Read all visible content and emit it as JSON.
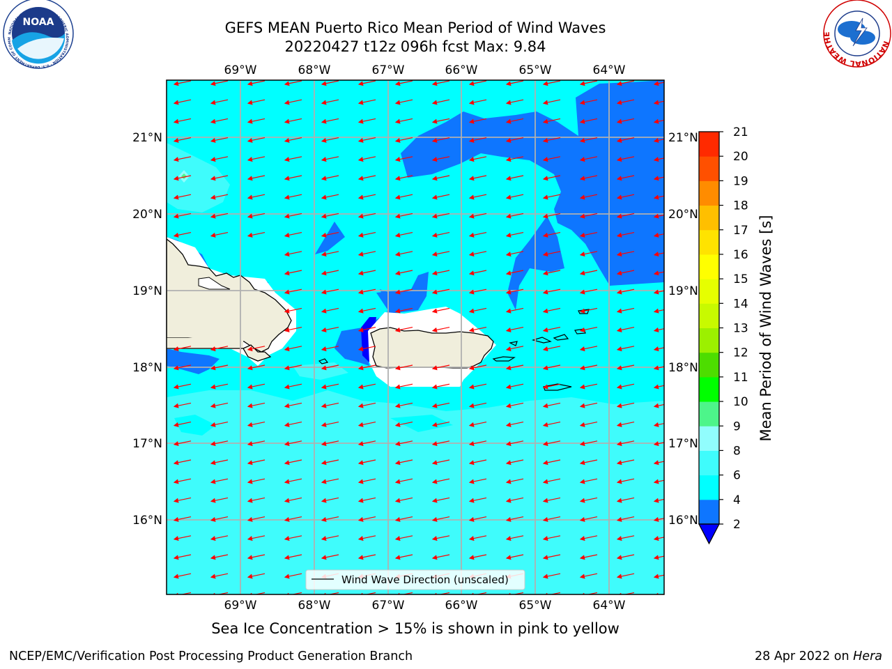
{
  "header": {
    "title_line1": "GEFS MEAN Puerto Rico Mean Period of Wind Waves",
    "title_line2": "20220427 t12z 096h fcst   Max: 9.84"
  },
  "logos": {
    "noaa_text": "NOAA",
    "noaa_ring_text": "NATIONAL OCEANIC AND ATMOSPHERIC ADMINISTRATION · U.S. DEPARTMENT OF COMMERCE",
    "nws_ring_text": "NATIONAL WEATHER SERVICE"
  },
  "map": {
    "lon_labels": [
      "69°W",
      "68°W",
      "67°W",
      "66°W",
      "65°W",
      "64°W"
    ],
    "lat_labels": [
      "21°N",
      "20°N",
      "19°N",
      "18°N",
      "17°N",
      "16°N"
    ],
    "colors": {
      "land": "#f0eedc",
      "ocean_base": "#00ffff",
      "short_period": "#0e76ff",
      "deep_blue": "#0000ff",
      "pale_cyan": "#3ffcfc",
      "arrow": "#ff0000"
    },
    "legend_label": "Wind Wave Direction (unscaled)",
    "wave_direction": "east-to-west"
  },
  "colorbar": {
    "label": "Mean Period of Wind Waves [s]",
    "ticks": [
      "2",
      "4",
      "6",
      "8",
      "9",
      "10",
      "11",
      "12",
      "13",
      "14",
      "15",
      "16",
      "17",
      "18",
      "19",
      "20",
      "21"
    ],
    "colors": [
      "#0e76ff",
      "#00ffff",
      "#3ffcfc",
      "#91fdfd",
      "#4df58a",
      "#00ff00",
      "#4ddd00",
      "#9cf000",
      "#c8fa00",
      "#e6ff00",
      "#ffff00",
      "#ffe300",
      "#ffbf00",
      "#ff8c00",
      "#ff5000",
      "#ff2a00",
      "#ff0000"
    ],
    "under_color": "#0000ff"
  },
  "caption": "Sea Ice Concentration > 15% is shown in pink to yellow",
  "footer": {
    "left": "NCEP/EMC/Verification Post Processing Product Generation Branch",
    "date": "28 Apr 2022 on ",
    "machine": "Hera"
  }
}
